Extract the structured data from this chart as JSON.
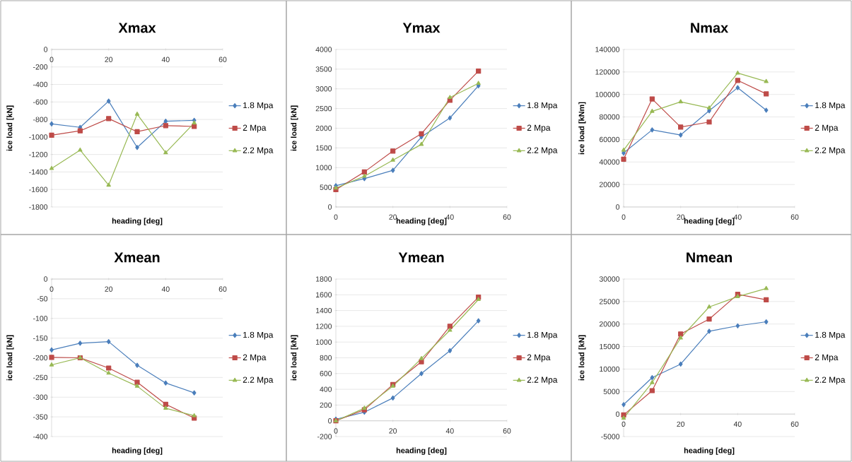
{
  "chart_data": [
    {
      "type": "line",
      "title": "Xmax",
      "xlabel": "heading [deg]",
      "ylabel": "ice load [kN]",
      "x": [
        0,
        10,
        20,
        30,
        40,
        50
      ],
      "xlim": [
        0,
        60
      ],
      "xticks": [
        0,
        20,
        40,
        60
      ],
      "ylim": [
        -1800,
        0
      ],
      "yticks": [
        -1800,
        -1600,
        -1400,
        -1200,
        -1000,
        -800,
        -600,
        -400,
        -200,
        0
      ],
      "grid": "y",
      "legend": "right",
      "series": [
        {
          "name": "1.8 Mpa",
          "color": "#4a7ebb",
          "marker": "diamond",
          "values": [
            -850,
            -890,
            -590,
            -1120,
            -820,
            -810
          ]
        },
        {
          "name": "2 Mpa",
          "color": "#be4b48",
          "marker": "square",
          "values": [
            -980,
            -930,
            -790,
            -940,
            -870,
            -880
          ]
        },
        {
          "name": "2.2 Mpa",
          "color": "#98b954",
          "marker": "triangle",
          "values": [
            -1360,
            -1150,
            -1550,
            -740,
            -1180,
            -840
          ]
        }
      ]
    },
    {
      "type": "line",
      "title": "Ymax",
      "xlabel": "heading [deg]",
      "ylabel": "ice load [kN]",
      "x": [
        0,
        10,
        20,
        30,
        40,
        50
      ],
      "xlim": [
        0,
        60
      ],
      "xticks": [
        0,
        20,
        40,
        60
      ],
      "ylim": [
        0,
        4000
      ],
      "yticks": [
        0,
        500,
        1000,
        1500,
        2000,
        2500,
        3000,
        3500,
        4000
      ],
      "grid": "y",
      "legend": "right",
      "series": [
        {
          "name": "1.8 Mpa",
          "color": "#4a7ebb",
          "marker": "diamond",
          "values": [
            540,
            720,
            930,
            1780,
            2260,
            3080
          ]
        },
        {
          "name": "2 Mpa",
          "color": "#be4b48",
          "marker": "square",
          "values": [
            440,
            890,
            1420,
            1860,
            2710,
            3450
          ]
        },
        {
          "name": "2.2 Mpa",
          "color": "#98b954",
          "marker": "triangle",
          "values": [
            480,
            780,
            1190,
            1590,
            2780,
            3140
          ]
        }
      ]
    },
    {
      "type": "line",
      "title": "Nmax",
      "xlabel": "heading [deg]",
      "ylabel": "ice load [kNm]",
      "x": [
        0,
        10,
        20,
        30,
        40,
        50
      ],
      "xlim": [
        0,
        60
      ],
      "xticks": [
        0,
        20,
        40,
        60
      ],
      "ylim": [
        0,
        140000
      ],
      "yticks": [
        0,
        20000,
        40000,
        60000,
        80000,
        100000,
        120000,
        140000
      ],
      "grid": "y",
      "legend": "right",
      "series": [
        {
          "name": "1.8 Mpa",
          "color": "#4a7ebb",
          "marker": "diamond",
          "values": [
            48000,
            68500,
            64000,
            85500,
            106000,
            86000
          ]
        },
        {
          "name": "2 Mpa",
          "color": "#be4b48",
          "marker": "square",
          "values": [
            42500,
            96000,
            71000,
            75500,
            112500,
            100500
          ]
        },
        {
          "name": "2.2 Mpa",
          "color": "#98b954",
          "marker": "triangle",
          "values": [
            50500,
            85000,
            93500,
            88000,
            119000,
            111500
          ]
        }
      ]
    },
    {
      "type": "line",
      "title": "Xmean",
      "xlabel": "heading [deg]",
      "ylabel": "ice load [kN]",
      "x": [
        0,
        10,
        20,
        30,
        40,
        50
      ],
      "xlim": [
        0,
        60
      ],
      "xticks": [
        0,
        20,
        40,
        60
      ],
      "ylim": [
        -400,
        0
      ],
      "yticks": [
        -400,
        -350,
        -300,
        -250,
        -200,
        -150,
        -100,
        -50,
        0
      ],
      "grid": "y",
      "legend": "right",
      "series": [
        {
          "name": "1.8 Mpa",
          "color": "#4a7ebb",
          "marker": "diamond",
          "values": [
            -180,
            -163,
            -159,
            -219,
            -264,
            -289
          ]
        },
        {
          "name": "2 Mpa",
          "color": "#be4b48",
          "marker": "square",
          "values": [
            -199,
            -200,
            -226,
            -262,
            -318,
            -353
          ]
        },
        {
          "name": "2.2 Mpa",
          "color": "#98b954",
          "marker": "triangle",
          "values": [
            -218,
            -200,
            -239,
            -272,
            -328,
            -347
          ]
        }
      ]
    },
    {
      "type": "line",
      "title": "Ymean",
      "xlabel": "heading [deg]",
      "ylabel": "ice load [kN]",
      "x": [
        0,
        10,
        20,
        30,
        40,
        50
      ],
      "xlim": [
        0,
        60
      ],
      "xticks": [
        0,
        20,
        40,
        60
      ],
      "ylim": [
        -200,
        1800
      ],
      "yticks": [
        -200,
        0,
        200,
        400,
        600,
        800,
        1000,
        1200,
        1400,
        1600,
        1800
      ],
      "grid": "y",
      "legend": "right",
      "series": [
        {
          "name": "1.8 Mpa",
          "color": "#4a7ebb",
          "marker": "diamond",
          "values": [
            20,
            110,
            290,
            600,
            890,
            1270
          ]
        },
        {
          "name": "2 Mpa",
          "color": "#be4b48",
          "marker": "square",
          "values": [
            0,
            140,
            460,
            750,
            1200,
            1570
          ]
        },
        {
          "name": "2.2 Mpa",
          "color": "#98b954",
          "marker": "triangle",
          "values": [
            0,
            160,
            440,
            790,
            1150,
            1540
          ]
        }
      ]
    },
    {
      "type": "line",
      "title": "Nmean",
      "xlabel": "heading [deg]",
      "ylabel": "ice load [kN]",
      "x": [
        0,
        10,
        20,
        30,
        40,
        50
      ],
      "xlim": [
        0,
        60
      ],
      "xticks": [
        0,
        20,
        40,
        60
      ],
      "ylim": [
        -5000,
        30000
      ],
      "yticks": [
        -5000,
        0,
        5000,
        10000,
        15000,
        20000,
        25000,
        30000
      ],
      "grid": "y",
      "legend": "right",
      "series": [
        {
          "name": "1.8 Mpa",
          "color": "#4a7ebb",
          "marker": "diamond",
          "values": [
            2100,
            8100,
            11100,
            18400,
            19600,
            20500
          ]
        },
        {
          "name": "2 Mpa",
          "color": "#be4b48",
          "marker": "square",
          "values": [
            -200,
            5200,
            17800,
            21100,
            26600,
            25400
          ]
        },
        {
          "name": "2.2 Mpa",
          "color": "#98b954",
          "marker": "triangle",
          "values": [
            -900,
            7000,
            16900,
            23800,
            26100,
            27900
          ]
        }
      ]
    }
  ]
}
